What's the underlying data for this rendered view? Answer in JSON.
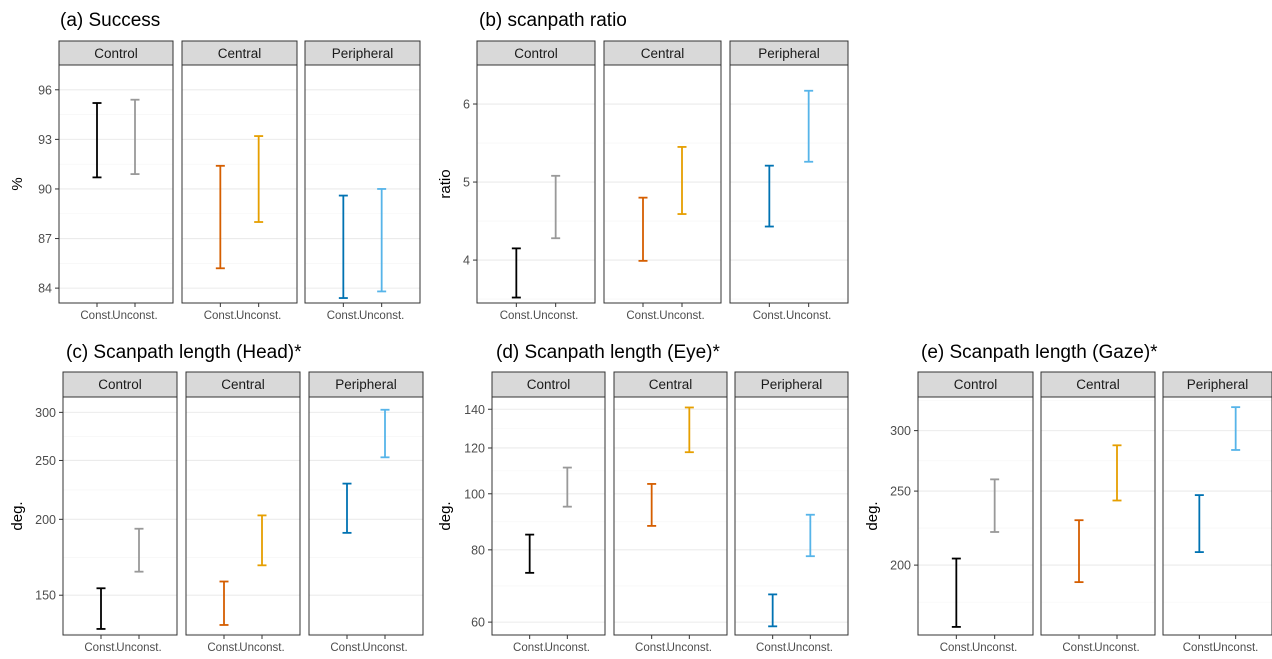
{
  "chart_data": [
    {
      "type": "errorbar",
      "title": "(a) Success",
      "ylabel": "%",
      "ylim": [
        83.1,
        97.5
      ],
      "yticks": [
        84,
        87,
        90,
        93,
        96
      ],
      "facets": [
        "Control",
        "Central",
        "Peripheral"
      ],
      "categories": [
        "Const.",
        "Unconst."
      ],
      "series": [
        {
          "facet": "Control",
          "category": "Const.",
          "low": 90.7,
          "high": 95.2,
          "color": "#000000"
        },
        {
          "facet": "Control",
          "category": "Unconst.",
          "low": 90.9,
          "high": 95.4,
          "color": "#999999"
        },
        {
          "facet": "Central",
          "category": "Const.",
          "low": 85.2,
          "high": 91.4,
          "color": "#d55e00"
        },
        {
          "facet": "Central",
          "category": "Unconst.",
          "low": 88.0,
          "high": 93.2,
          "color": "#e69f00"
        },
        {
          "facet": "Peripheral",
          "category": "Const.",
          "low": 83.4,
          "high": 89.6,
          "color": "#0072b2"
        },
        {
          "facet": "Peripheral",
          "category": "Unconst.",
          "low": 83.8,
          "high": 90.0,
          "color": "#56b4e9"
        }
      ]
    },
    {
      "type": "errorbar",
      "title": "(b) scanpath ratio",
      "ylabel": "ratio",
      "ylim": [
        3.45,
        6.5
      ],
      "yticks": [
        4,
        5,
        6
      ],
      "facets": [
        "Control",
        "Central",
        "Peripheral"
      ],
      "categories": [
        "Const.",
        "Unconst."
      ],
      "series": [
        {
          "facet": "Control",
          "category": "Const.",
          "low": 3.52,
          "high": 4.15,
          "color": "#000000"
        },
        {
          "facet": "Control",
          "category": "Unconst.",
          "low": 4.28,
          "high": 5.08,
          "color": "#999999"
        },
        {
          "facet": "Central",
          "category": "Const.",
          "low": 3.99,
          "high": 4.8,
          "color": "#d55e00"
        },
        {
          "facet": "Central",
          "category": "Unconst.",
          "low": 4.59,
          "high": 5.45,
          "color": "#e69f00"
        },
        {
          "facet": "Peripheral",
          "category": "Const.",
          "low": 4.43,
          "high": 5.21,
          "color": "#0072b2"
        },
        {
          "facet": "Peripheral",
          "category": "Unconst.",
          "low": 5.26,
          "high": 6.17,
          "color": "#56b4e9"
        }
      ]
    },
    {
      "type": "errorbar",
      "title": "(c) Scanpath length (Head)*",
      "ylabel": "deg.",
      "scale": "log",
      "ylim": [
        129,
        318
      ],
      "yticks": [
        150,
        200,
        250,
        300
      ],
      "facets": [
        "Control",
        "Central",
        "Peripheral"
      ],
      "categories": [
        "Const.",
        "Unconst."
      ],
      "series": [
        {
          "facet": "Control",
          "category": "Const.",
          "low": 132,
          "high": 154,
          "color": "#000000"
        },
        {
          "facet": "Control",
          "category": "Unconst.",
          "low": 164,
          "high": 193,
          "color": "#999999"
        },
        {
          "facet": "Central",
          "category": "Const.",
          "low": 134,
          "high": 158,
          "color": "#d55e00"
        },
        {
          "facet": "Central",
          "category": "Unconst.",
          "low": 168,
          "high": 203,
          "color": "#e69f00"
        },
        {
          "facet": "Peripheral",
          "category": "Const.",
          "low": 190,
          "high": 229,
          "color": "#0072b2"
        },
        {
          "facet": "Peripheral",
          "category": "Unconst.",
          "low": 253,
          "high": 303,
          "color": "#56b4e9"
        }
      ]
    },
    {
      "type": "errorbar",
      "title": "(d) Scanpath length (Eye)*",
      "ylabel": "deg.",
      "scale": "log",
      "ylim": [
        57,
        147
      ],
      "yticks": [
        60,
        80,
        100,
        120,
        140
      ],
      "facets": [
        "Control",
        "Central",
        "Peripheral"
      ],
      "categories": [
        "Const.",
        "Unconst."
      ],
      "series": [
        {
          "facet": "Control",
          "category": "Const.",
          "low": 73,
          "high": 85,
          "color": "#000000"
        },
        {
          "facet": "Control",
          "category": "Unconst.",
          "low": 95,
          "high": 111,
          "color": "#999999"
        },
        {
          "facet": "Central",
          "category": "Const.",
          "low": 88,
          "high": 104,
          "color": "#d55e00"
        },
        {
          "facet": "Central",
          "category": "Unconst.",
          "low": 118,
          "high": 141,
          "color": "#e69f00"
        },
        {
          "facet": "Peripheral",
          "category": "Const.",
          "low": 59,
          "high": 67,
          "color": "#0072b2"
        },
        {
          "facet": "Peripheral",
          "category": "Unconst.",
          "low": 78,
          "high": 92,
          "color": "#56b4e9"
        }
      ]
    },
    {
      "type": "errorbar",
      "title": "(e) Scanpath length (Gaze)*",
      "ylabel": "deg.",
      "scale": "log",
      "ylim": [
        162,
        332
      ],
      "yticks": [
        200,
        250,
        300
      ],
      "facets": [
        "Control",
        "Central",
        "Peripheral"
      ],
      "categories": [
        "Const.",
        "Unconst."
      ],
      "series": [
        {
          "facet": "Control",
          "category": "Const.",
          "low": 166,
          "high": 204,
          "color": "#000000"
        },
        {
          "facet": "Control",
          "category": "Unconst.",
          "low": 221,
          "high": 259,
          "color": "#999999"
        },
        {
          "facet": "Central",
          "category": "Const.",
          "low": 190,
          "high": 229,
          "color": "#d55e00"
        },
        {
          "facet": "Central",
          "category": "Unconst.",
          "low": 243,
          "high": 287,
          "color": "#e69f00"
        },
        {
          "facet": "Peripheral",
          "category": "Const.",
          "low": 208,
          "high": 247,
          "color": "#0072b2"
        },
        {
          "facet": "Peripheral",
          "category": "Unconst.",
          "low": 283,
          "high": 322,
          "color": "#56b4e9"
        }
      ]
    }
  ]
}
